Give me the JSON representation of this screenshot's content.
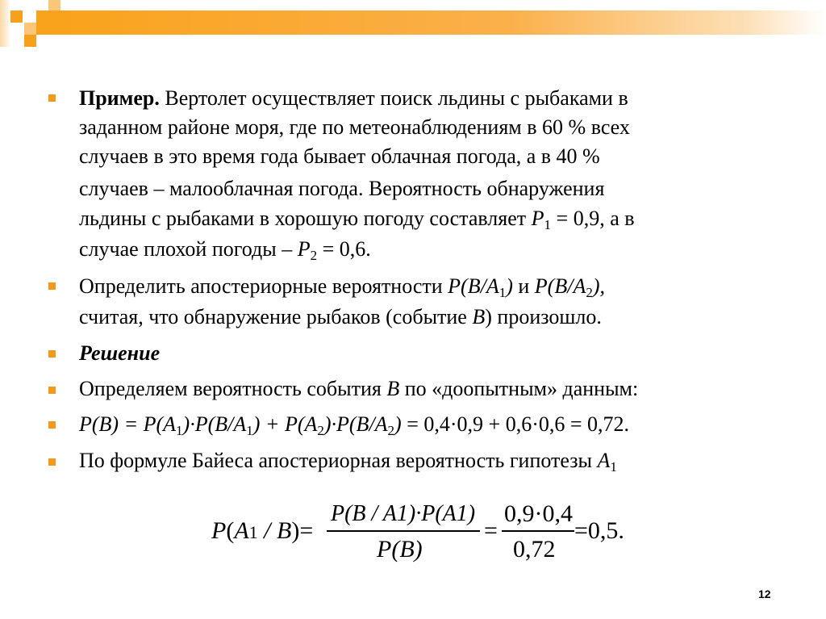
{
  "slide": {
    "page_number": "12",
    "accent_color": "#f39a1e",
    "p1": {
      "label": "Пример.",
      "l1": "Вертолет осуществляет поиск льдины с рыбаками в",
      "l2": "заданном районе моря, где по метеонаблюдениям в 60 % всех",
      "l3": "случаев в это время года бывает облачная погода, а в 40 %",
      "l4": "случаев – малооблачная погода. Вероятность обнаружения",
      "l5a": "льдины с рыбаками в хорошую погоду составляет ",
      "l5b": "P",
      "l5c": "1",
      "l5d": " = 0,9, а в",
      "l6a": "случае плохой погоды – ",
      "l6b": "P",
      "l6c": "2",
      "l6d": " = 0,6."
    },
    "p2": {
      "l1a": "Определить апостериорные вероятности ",
      "l1b": "P(B/A",
      "l1c": "1",
      "l1d": ")",
      "l1e": " и ",
      "l1f": "P(B/A",
      "l1g": "2",
      "l1h": "),",
      "l2a": "считая, что обнаружение рыбаков (событие ",
      "l2b": "B",
      "l2c": ") произошло."
    },
    "p3": "Решение",
    "p4": {
      "a": "Определяем вероятность события ",
      "b": "B",
      "c": " по «доопытным» данным:"
    },
    "p5": {
      "a": "P(B) = P(A",
      "b": "1",
      "c": ")·P(B/A",
      "d": "1",
      "e": ") + P(A",
      "f": "2",
      "g": ")·P(B/A",
      "h": "2",
      "i": ")",
      "j": " = 0,4·0,9 + 0,6·0,6 = 0,72."
    },
    "p6": {
      "a": "По формуле Байеса апостериорная вероятность гипотезы ",
      "b": "A",
      "c": "1"
    },
    "formula": {
      "lhs_a": "P",
      "lhs_b": "(",
      "lhs_c": "A",
      "lhs_d": "1",
      "lhs_e": " / ",
      "lhs_f": "B",
      "lhs_g": ")=",
      "num1": "P(B / A1)·P(A1)",
      "den1": "P(B)",
      "eq2": "=",
      "num2": "0,9·0,4",
      "den2": "0,72",
      "result": "=0,5."
    }
  }
}
